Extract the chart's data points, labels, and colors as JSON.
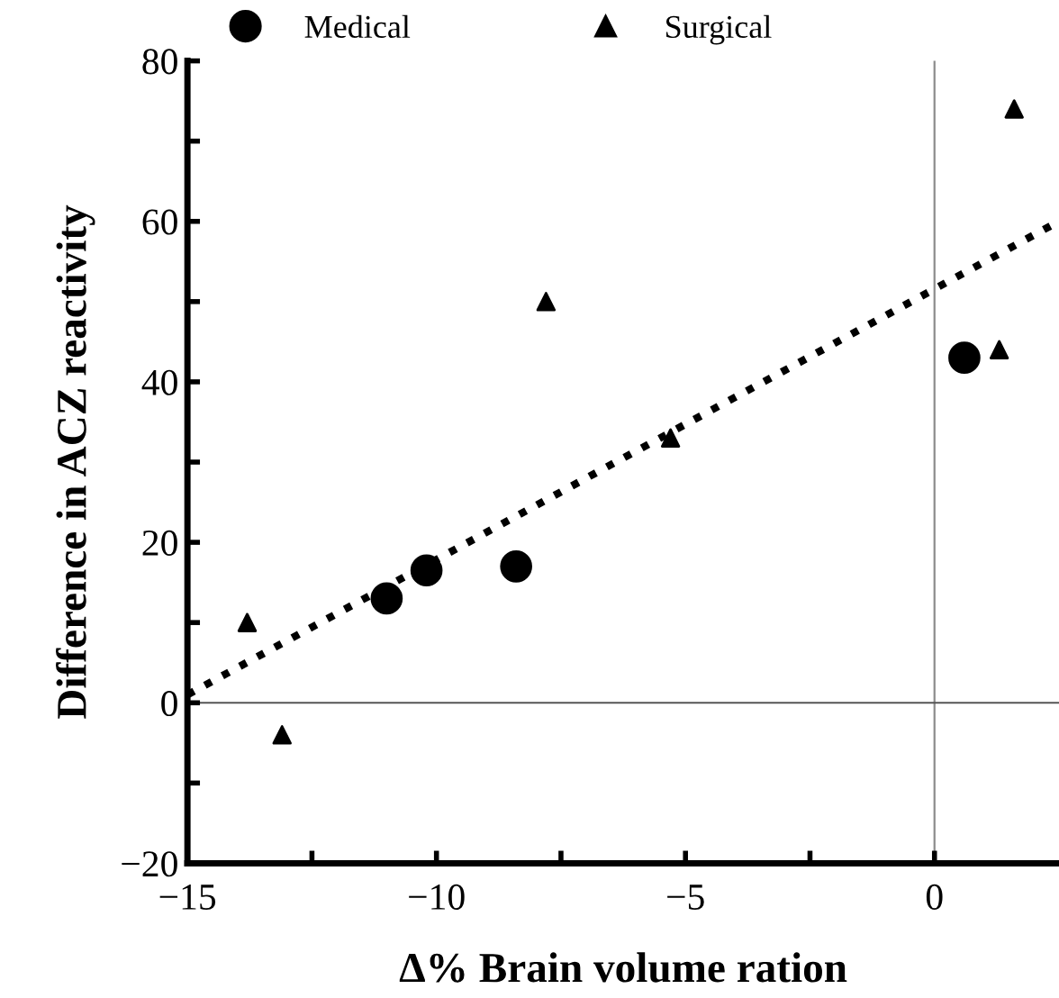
{
  "chart_data": {
    "type": "scatter",
    "xlabel": "Δ% Brain volume ration",
    "ylabel": "Difference in ACZ reactivity",
    "series": [
      {
        "name": "Medical",
        "color": "#000000",
        "marker": "circle",
        "x": [
          -11.0,
          -10.2,
          -8.4,
          0.6
        ],
        "values": [
          13,
          16.5,
          17,
          43
        ]
      },
      {
        "name": "Surgical",
        "color": "#000000",
        "marker": "triangle",
        "x": [
          -13.8,
          -13.1,
          -7.8,
          -5.3,
          1.3,
          1.6
        ],
        "values": [
          10,
          -4,
          50,
          33,
          44,
          74
        ]
      },
      {
        "type": "line",
        "color": "#000000",
        "line_style": "dotted",
        "marker": "none",
        "x": [
          -15,
          2.5
        ],
        "values": [
          1,
          60
        ]
      }
    ],
    "xlim": [
      -15,
      2.5
    ],
    "ylim": [
      -20,
      80
    ],
    "xticks": [
      {
        "value": -15,
        "label": "−15"
      },
      {
        "value": -12.5,
        "label": null
      },
      {
        "value": -10,
        "label": "−10"
      },
      {
        "value": -7.5,
        "label": null
      },
      {
        "value": -5,
        "label": "−5"
      },
      {
        "value": -2.5,
        "label": null
      },
      0
    ],
    "yticks": [
      {
        "value": -20,
        "label": "−20"
      },
      {
        "value": -10,
        "label": null
      },
      0,
      {
        "value": 10,
        "label": null
      },
      20,
      {
        "value": 30,
        "label": null
      },
      40,
      {
        "value": 50,
        "label": null
      },
      60,
      {
        "value": 70,
        "label": null
      },
      80
    ],
    "ref_lines": [
      {
        "axis": "x",
        "value": 0,
        "color": "#8c8c8c"
      },
      {
        "axis": "y",
        "value": 0,
        "color": "#555555"
      }
    ],
    "legend": "top",
    "grid": false
  }
}
